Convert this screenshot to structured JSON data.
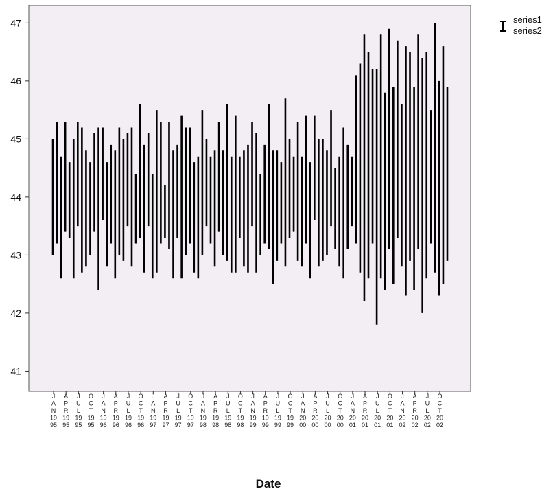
{
  "chart_data": {
    "type": "high-low",
    "xlabel": "Date",
    "ylim": [
      40.65,
      47.3
    ],
    "yticks": [
      41,
      42,
      43,
      44,
      45,
      46,
      47
    ],
    "legend": {
      "placement": "top-right",
      "labels": [
        "series1",
        "series2"
      ]
    },
    "colors": {
      "plot_background": "#f3eef3",
      "bar": "#000000"
    },
    "x_tick_labels": [
      [
        "J",
        "A",
        "N",
        "19",
        "95"
      ],
      [
        "A",
        "P",
        "R",
        "19",
        "95"
      ],
      [
        "J",
        "U",
        "L",
        "19",
        "95"
      ],
      [
        "O",
        "C",
        "T",
        "19",
        "95"
      ],
      [
        "J",
        "A",
        "N",
        "19",
        "96"
      ],
      [
        "A",
        "P",
        "R",
        "19",
        "96"
      ],
      [
        "J",
        "U",
        "L",
        "19",
        "96"
      ],
      [
        "O",
        "C",
        "T",
        "19",
        "96"
      ],
      [
        "J",
        "A",
        "N",
        "19",
        "97"
      ],
      [
        "A",
        "P",
        "R",
        "19",
        "97"
      ],
      [
        "J",
        "U",
        "L",
        "19",
        "97"
      ],
      [
        "O",
        "C",
        "T",
        "19",
        "97"
      ],
      [
        "J",
        "A",
        "N",
        "19",
        "98"
      ],
      [
        "A",
        "P",
        "R",
        "19",
        "98"
      ],
      [
        "J",
        "U",
        "L",
        "19",
        "98"
      ],
      [
        "O",
        "C",
        "T",
        "19",
        "98"
      ],
      [
        "J",
        "A",
        "N",
        "19",
        "99"
      ],
      [
        "A",
        "P",
        "R",
        "19",
        "99"
      ],
      [
        "J",
        "U",
        "L",
        "19",
        "99"
      ],
      [
        "O",
        "C",
        "T",
        "19",
        "99"
      ],
      [
        "J",
        "A",
        "N",
        "20",
        "00"
      ],
      [
        "A",
        "P",
        "R",
        "20",
        "00"
      ],
      [
        "J",
        "U",
        "L",
        "20",
        "00"
      ],
      [
        "O",
        "C",
        "T",
        "20",
        "00"
      ],
      [
        "J",
        "A",
        "N",
        "20",
        "01"
      ],
      [
        "A",
        "P",
        "R",
        "20",
        "01"
      ],
      [
        "J",
        "U",
        "L",
        "20",
        "01"
      ],
      [
        "O",
        "C",
        "T",
        "20",
        "01"
      ],
      [
        "J",
        "A",
        "N",
        "20",
        "02"
      ],
      [
        "A",
        "P",
        "R",
        "20",
        "02"
      ],
      [
        "J",
        "U",
        "L",
        "20",
        "02"
      ],
      [
        "O",
        "C",
        "T",
        "20",
        "02"
      ]
    ],
    "bars": [
      [
        43.0,
        45.0
      ],
      [
        43.2,
        45.3
      ],
      [
        42.6,
        44.7
      ],
      [
        43.4,
        45.3
      ],
      [
        43.3,
        44.6
      ],
      [
        42.6,
        45.0
      ],
      [
        43.5,
        45.3
      ],
      [
        42.7,
        45.2
      ],
      [
        42.8,
        44.8
      ],
      [
        43.0,
        44.6
      ],
      [
        43.4,
        45.1
      ],
      [
        42.4,
        45.2
      ],
      [
        43.6,
        45.2
      ],
      [
        42.8,
        44.6
      ],
      [
        43.2,
        44.9
      ],
      [
        42.6,
        44.8
      ],
      [
        43.0,
        45.2
      ],
      [
        42.9,
        45.0
      ],
      [
        43.5,
        45.1
      ],
      [
        42.8,
        45.2
      ],
      [
        43.2,
        44.4
      ],
      [
        43.3,
        45.6
      ],
      [
        42.7,
        44.9
      ],
      [
        43.5,
        45.1
      ],
      [
        42.6,
        44.4
      ],
      [
        42.7,
        45.5
      ],
      [
        43.2,
        45.3
      ],
      [
        43.3,
        44.2
      ],
      [
        43.1,
        45.3
      ],
      [
        42.6,
        44.8
      ],
      [
        43.3,
        44.9
      ],
      [
        42.6,
        45.4
      ],
      [
        43.0,
        45.2
      ],
      [
        43.2,
        45.2
      ],
      [
        42.7,
        44.6
      ],
      [
        42.6,
        44.7
      ],
      [
        43.0,
        45.5
      ],
      [
        43.5,
        45.0
      ],
      [
        43.2,
        44.7
      ],
      [
        42.8,
        44.8
      ],
      [
        43.4,
        45.3
      ],
      [
        43.0,
        44.8
      ],
      [
        42.9,
        45.6
      ],
      [
        42.7,
        44.7
      ],
      [
        42.7,
        45.4
      ],
      [
        43.3,
        44.7
      ],
      [
        42.8,
        44.8
      ],
      [
        42.7,
        44.9
      ],
      [
        43.5,
        45.3
      ],
      [
        42.7,
        45.1
      ],
      [
        43.0,
        44.4
      ],
      [
        43.2,
        44.9
      ],
      [
        43.1,
        45.6
      ],
      [
        42.5,
        44.8
      ],
      [
        42.9,
        44.8
      ],
      [
        43.2,
        44.6
      ],
      [
        42.8,
        45.7
      ],
      [
        43.3,
        45.0
      ],
      [
        43.4,
        44.7
      ],
      [
        42.9,
        45.3
      ],
      [
        42.8,
        44.7
      ],
      [
        43.2,
        45.4
      ],
      [
        42.6,
        44.6
      ],
      [
        43.6,
        45.4
      ],
      [
        42.8,
        45.0
      ],
      [
        42.9,
        45.0
      ],
      [
        43.0,
        44.8
      ],
      [
        43.5,
        45.5
      ],
      [
        43.1,
        44.5
      ],
      [
        42.8,
        44.7
      ],
      [
        42.6,
        45.2
      ],
      [
        43.1,
        44.9
      ],
      [
        43.5,
        44.7
      ],
      [
        43.2,
        46.1
      ],
      [
        42.7,
        46.3
      ],
      [
        42.2,
        46.8
      ],
      [
        42.6,
        46.5
      ],
      [
        43.2,
        46.2
      ],
      [
        41.8,
        46.2
      ],
      [
        42.6,
        46.8
      ],
      [
        42.4,
        45.8
      ],
      [
        43.1,
        46.9
      ],
      [
        42.5,
        45.9
      ],
      [
        43.3,
        46.7
      ],
      [
        42.8,
        45.6
      ],
      [
        42.3,
        46.6
      ],
      [
        42.9,
        46.5
      ],
      [
        42.4,
        45.9
      ],
      [
        43.1,
        46.8
      ],
      [
        42.0,
        46.4
      ],
      [
        42.6,
        46.5
      ],
      [
        43.2,
        45.5
      ],
      [
        42.7,
        47.0
      ],
      [
        42.3,
        46.0
      ],
      [
        42.5,
        46.6
      ],
      [
        42.9,
        45.9
      ]
    ]
  }
}
